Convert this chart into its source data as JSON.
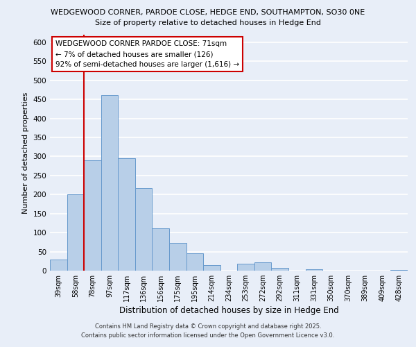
{
  "title_line1": "WEDGEWOOD CORNER, PARDOE CLOSE, HEDGE END, SOUTHAMPTON, SO30 0NE",
  "title_line2": "Size of property relative to detached houses in Hedge End",
  "xlabel": "Distribution of detached houses by size in Hedge End",
  "ylabel": "Number of detached properties",
  "bar_labels": [
    "39sqm",
    "58sqm",
    "78sqm",
    "97sqm",
    "117sqm",
    "136sqm",
    "156sqm",
    "175sqm",
    "195sqm",
    "214sqm",
    "234sqm",
    "253sqm",
    "272sqm",
    "292sqm",
    "311sqm",
    "331sqm",
    "350sqm",
    "370sqm",
    "389sqm",
    "409sqm",
    "428sqm"
  ],
  "bar_values": [
    30,
    200,
    290,
    462,
    295,
    217,
    111,
    73,
    46,
    14,
    0,
    18,
    22,
    8,
    0,
    4,
    0,
    0,
    0,
    0,
    2
  ],
  "bar_color": "#b8cfe8",
  "bar_edge_color": "#6699cc",
  "marker_color": "#cc0000",
  "ylim": [
    0,
    620
  ],
  "yticks": [
    0,
    50,
    100,
    150,
    200,
    250,
    300,
    350,
    400,
    450,
    500,
    550,
    600
  ],
  "annotation_line1": "WEDGEWOOD CORNER PARDOE CLOSE: 71sqm",
  "annotation_line2": "← 7% of detached houses are smaller (126)",
  "annotation_line3": "92% of semi-detached houses are larger (1,616) →",
  "footer1": "Contains HM Land Registry data © Crown copyright and database right 2025.",
  "footer2": "Contains public sector information licensed under the Open Government Licence v3.0.",
  "bg_color": "#e8eef8"
}
